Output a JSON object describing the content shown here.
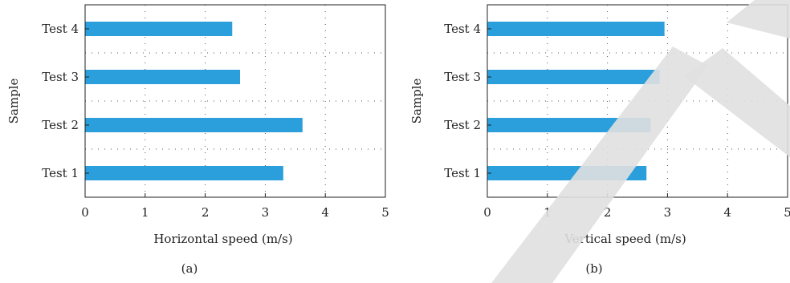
{
  "chart_data": [
    {
      "type": "bar",
      "orientation": "horizontal",
      "categories": [
        "Test 1",
        "Test 2",
        "Test 3",
        "Test 4"
      ],
      "values": [
        3.3,
        3.62,
        2.58,
        2.45
      ],
      "xlabel": "Horizontal speed (m/s)",
      "ylabel": "Sample",
      "xlim": [
        0,
        5
      ],
      "xticks": [
        "0",
        "1",
        "2",
        "3",
        "4",
        "5"
      ],
      "grid": true,
      "panel_label": "(a)",
      "bar_color": "#2b9fdc"
    },
    {
      "type": "bar",
      "orientation": "horizontal",
      "categories": [
        "Test 1",
        "Test 2",
        "Test 3",
        "Test 4"
      ],
      "values": [
        2.65,
        2.72,
        2.87,
        2.95
      ],
      "xlabel": "Vertical speed (m/s)",
      "ylabel": "Sample",
      "xlim": [
        0,
        5
      ],
      "xticks": [
        "0",
        "1",
        "2",
        "3",
        "4",
        "5"
      ],
      "grid": true,
      "panel_label": "(b)",
      "bar_color": "#2b9fdc"
    }
  ],
  "watermark_color": "#e0e0e0"
}
